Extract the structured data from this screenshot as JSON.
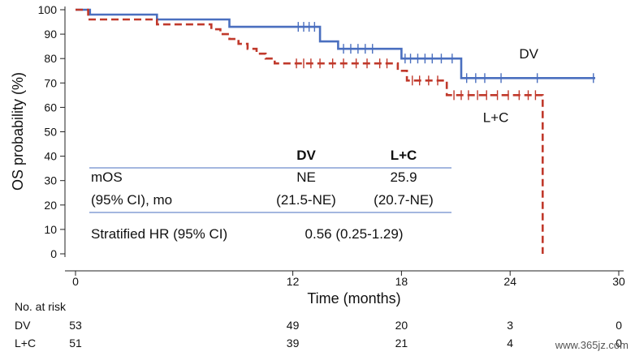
{
  "chart_data": {
    "type": "line",
    "title": "",
    "xlabel": "Time (months)",
    "ylabel": "OS probability (%)",
    "xlim": [
      0,
      30
    ],
    "ylim": [
      0,
      100
    ],
    "x_ticks": [
      0,
      12,
      18,
      24,
      30
    ],
    "y_ticks": [
      0,
      10,
      20,
      30,
      40,
      50,
      60,
      70,
      80,
      90,
      100
    ],
    "grid": false,
    "series": [
      {
        "name": "DV",
        "color": "#4a6fbf",
        "style": "solid",
        "steps": [
          [
            0,
            100
          ],
          [
            0.8,
            100
          ],
          [
            0.8,
            98
          ],
          [
            4.5,
            98
          ],
          [
            4.5,
            96
          ],
          [
            8.5,
            96
          ],
          [
            8.5,
            93
          ],
          [
            13.5,
            93
          ],
          [
            13.5,
            87
          ],
          [
            14.5,
            87
          ],
          [
            14.5,
            84
          ],
          [
            18,
            84
          ],
          [
            18,
            80
          ],
          [
            21.3,
            80
          ],
          [
            21.3,
            72
          ],
          [
            28.7,
            72
          ]
        ],
        "censor_x": [
          12.3,
          12.6,
          12.9,
          13.2,
          14.8,
          15.2,
          15.6,
          16.0,
          16.4,
          18.2,
          18.5,
          18.9,
          19.3,
          19.7,
          20.2,
          20.8,
          21.6,
          22.1,
          22.6,
          23.5,
          25.5,
          28.6
        ],
        "label_at": [
          24.5,
          80
        ]
      },
      {
        "name": "L+C",
        "color": "#c0392b",
        "style": "dashed",
        "steps": [
          [
            0,
            100
          ],
          [
            0.7,
            100
          ],
          [
            0.7,
            96
          ],
          [
            4.5,
            96
          ],
          [
            4.5,
            94
          ],
          [
            7.5,
            94
          ],
          [
            7.5,
            92
          ],
          [
            8.0,
            92
          ],
          [
            8.0,
            90
          ],
          [
            8.5,
            90
          ],
          [
            8.5,
            88
          ],
          [
            9.0,
            88
          ],
          [
            9.0,
            86
          ],
          [
            9.5,
            86
          ],
          [
            9.5,
            84
          ],
          [
            10.0,
            84
          ],
          [
            10.0,
            82
          ],
          [
            10.5,
            82
          ],
          [
            10.5,
            80
          ],
          [
            11.0,
            80
          ],
          [
            11.0,
            78
          ],
          [
            17.8,
            78
          ],
          [
            17.8,
            75
          ],
          [
            18.3,
            75
          ],
          [
            18.3,
            71
          ],
          [
            20.5,
            71
          ],
          [
            20.5,
            65
          ],
          [
            25.8,
            65
          ],
          [
            25.8,
            0
          ]
        ],
        "censor_x": [
          12.2,
          12.6,
          13.0,
          13.5,
          14.2,
          14.8,
          15.5,
          16.1,
          16.8,
          17.2,
          18.6,
          19.0,
          19.5,
          20.0,
          20.9,
          21.3,
          21.7,
          22.2,
          22.7,
          23.3,
          23.9,
          24.5,
          25.0,
          25.4
        ],
        "label_at": [
          22.5,
          54
        ]
      }
    ],
    "summary_table": {
      "col_headers": [
        "DV",
        "L+C"
      ],
      "rows": [
        {
          "label": "mOS",
          "values": [
            "NE",
            "25.9"
          ]
        },
        {
          "label": "(95% CI), mo",
          "values": [
            "(21.5-NE)",
            "(20.7-NE)"
          ]
        }
      ],
      "hr_label": "Stratified HR (95% CI)",
      "hr_value": "0.56 (0.25-1.29)"
    },
    "risk_table": {
      "title": "No. at risk",
      "time_points": [
        0,
        12,
        18,
        24,
        30
      ],
      "rows": [
        {
          "group": "DV",
          "values": [
            "53",
            "49",
            "20",
            "3",
            "0"
          ]
        },
        {
          "group": "L+C",
          "values": [
            "51",
            "39",
            "21",
            "4",
            "0"
          ]
        }
      ]
    }
  },
  "watermark": "www.365jz.com"
}
